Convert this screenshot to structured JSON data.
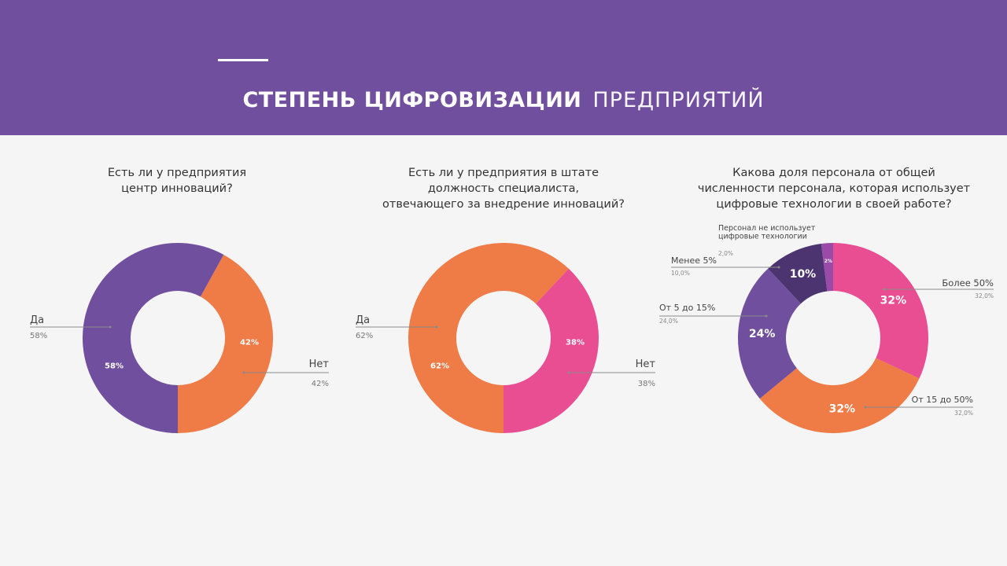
{
  "header": {
    "title_bold": "СТЕПЕНЬ ЦИФРОВИЗАЦИИ",
    "title_light": "ПРЕДПРИЯТИЙ"
  },
  "colors": {
    "header_bg": "#714f9f",
    "purple": "#714f9f",
    "orange": "#ef7b46",
    "pink": "#e94e93",
    "dark_purple": "#4b3470",
    "violet": "#9a4aa8"
  },
  "chart_data": [
    {
      "type": "pie",
      "variant": "donut",
      "title": "Есть ли у предприятия\nцентр инноваций?",
      "categories": [
        "Нет",
        "Да"
      ],
      "values": [
        42,
        58
      ],
      "slice_labels": [
        "42%",
        "58%"
      ],
      "legend": [
        {
          "label": "Да",
          "value": "58%",
          "side": "left"
        },
        {
          "label": "Нет",
          "value": "42%",
          "side": "right"
        }
      ],
      "colors": [
        "#ef7b46",
        "#714f9f"
      ]
    },
    {
      "type": "pie",
      "variant": "donut",
      "title": "Есть ли у предприятия в штате\nдолжность специалиста,\nотвечающего за внедрение инноваций?",
      "categories": [
        "Нет",
        "Да"
      ],
      "values": [
        38,
        62
      ],
      "slice_labels": [
        "38%",
        "62%"
      ],
      "legend": [
        {
          "label": "Да",
          "value": "62%",
          "side": "left"
        },
        {
          "label": "Нет",
          "value": "38%",
          "side": "right"
        }
      ],
      "colors": [
        "#e94e93",
        "#ef7b46"
      ]
    },
    {
      "type": "pie",
      "variant": "donut",
      "title": "Какова доля персонала от общей\nчисленности персонала, которая использует\nцифровые технологии в своей работе?",
      "categories": [
        "Более 50%",
        "От 15 до 50%",
        "От 5 до 15%",
        "Менее 5%",
        "Персонал не использует цифровые технологии"
      ],
      "values": [
        32,
        32,
        24,
        10,
        2
      ],
      "slice_labels": [
        "32%",
        "32%",
        "24%",
        "10%",
        "2%"
      ],
      "legend": [
        {
          "label": "Более 50%",
          "value": "32,0%",
          "side": "right"
        },
        {
          "label": "От 15 до 50%",
          "value": "32,0%",
          "side": "right"
        },
        {
          "label": "От 5 до 15%",
          "value": "24,0%",
          "side": "left"
        },
        {
          "label": "Менее 5%",
          "value": "10,0%",
          "side": "left"
        },
        {
          "label": "Персонал не использует\nцифровые технологии",
          "value": "2,0%",
          "side": "left"
        }
      ],
      "colors": [
        "#e94e93",
        "#ef7b46",
        "#714f9f",
        "#4b3470",
        "#9a4aa8"
      ]
    }
  ]
}
